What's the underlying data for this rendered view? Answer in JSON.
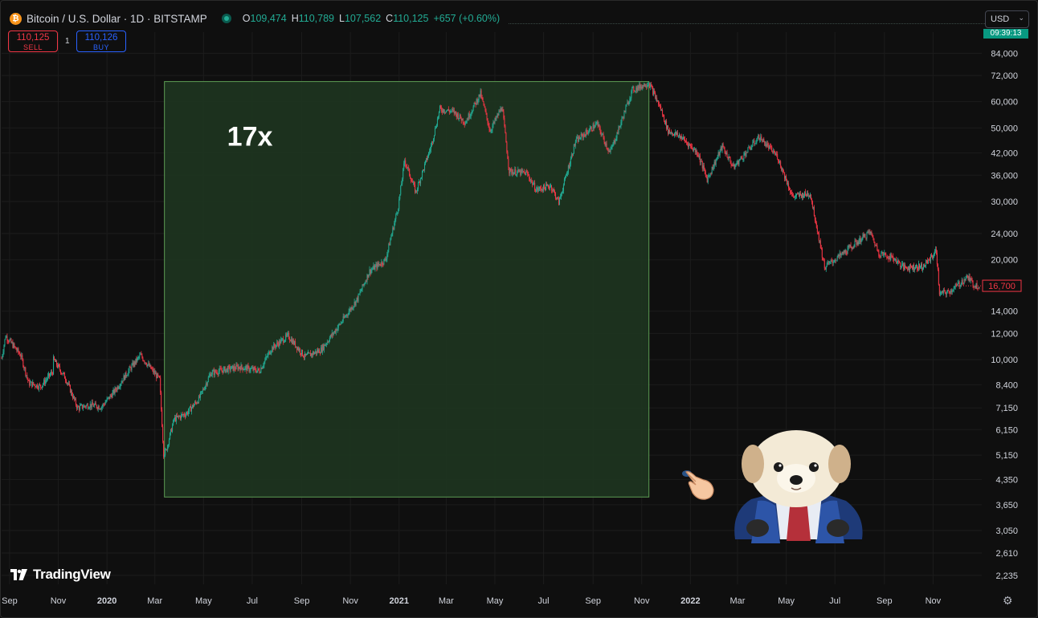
{
  "header": {
    "symbol": "Bitcoin / U.S. Dollar · 1D · BITSTAMP",
    "coin_glyph": "₿",
    "ohlc": [
      {
        "k": "O",
        "v": "109,474"
      },
      {
        "k": "H",
        "v": "110,789"
      },
      {
        "k": "L",
        "v": "107,562"
      },
      {
        "k": "C",
        "v": "110,125"
      },
      {
        "k": "",
        "v": "+657 (+0.60%)"
      }
    ]
  },
  "trade": {
    "sell_price": "110,125",
    "sell_label": "SELL",
    "spread": "1",
    "buy_price": "110,126",
    "buy_label": "BUY"
  },
  "currency": "USD",
  "timer": "09:39:13",
  "brand": "TradingView",
  "annotation_label": "17x",
  "current_price_label": "16,700",
  "colors": {
    "up": "#22ab94",
    "down": "#f23645",
    "bg": "#0f0f0f",
    "box": "#1e3420",
    "box_border": "#5d9c54"
  },
  "icons": [
    "coin-icon",
    "status-icon",
    "chevron-down-icon",
    "tradingview-logo-icon",
    "gear-icon",
    "pointing-hand-icon",
    "puppy-mascot-icon"
  ],
  "chart_data": {
    "type": "line",
    "title": "",
    "scale": "log",
    "grid": true,
    "y_ticks": [
      "84,000",
      "72,000",
      "60,000",
      "50,000",
      "42,000",
      "36,000",
      "30,000",
      "24,000",
      "20,000",
      "16,700",
      "14,000",
      "12,000",
      "10,000",
      "8,400",
      "7,150",
      "6,150",
      "5,150",
      "4,350",
      "3,650",
      "3,050",
      "2,610",
      "2,235"
    ],
    "x_ticks": [
      "Sep",
      "Nov",
      "2020",
      "Mar",
      "May",
      "Jul",
      "Sep",
      "Nov",
      "2021",
      "Mar",
      "May",
      "Jul",
      "Sep",
      "Nov",
      "2022",
      "Mar",
      "May",
      "Jul",
      "Sep",
      "Nov"
    ],
    "series": [
      {
        "values": [
          {
            "x": "2019-08-22",
            "y": 10100
          },
          {
            "x": "2019-08-27",
            "y": 11800
          },
          {
            "x": "2019-09-15",
            "y": 10300
          },
          {
            "x": "2019-09-25",
            "y": 8500
          },
          {
            "x": "2019-10-10",
            "y": 8300
          },
          {
            "x": "2019-10-25",
            "y": 9200
          },
          {
            "x": "2019-10-26",
            "y": 10000
          },
          {
            "x": "2019-11-10",
            "y": 8800
          },
          {
            "x": "2019-11-25",
            "y": 7150
          },
          {
            "x": "2019-12-10",
            "y": 7300
          },
          {
            "x": "2019-12-25",
            "y": 7200
          },
          {
            "x": "2020-01-10",
            "y": 8000
          },
          {
            "x": "2020-01-30",
            "y": 9400
          },
          {
            "x": "2020-02-12",
            "y": 10300
          },
          {
            "x": "2020-03-07",
            "y": 8700
          },
          {
            "x": "2020-03-12",
            "y": 5200
          },
          {
            "x": "2020-03-15",
            "y": 5300
          },
          {
            "x": "2020-03-25",
            "y": 6600
          },
          {
            "x": "2020-04-10",
            "y": 6900
          },
          {
            "x": "2020-04-25",
            "y": 7600
          },
          {
            "x": "2020-05-10",
            "y": 9100
          },
          {
            "x": "2020-05-25",
            "y": 9300
          },
          {
            "x": "2020-06-15",
            "y": 9500
          },
          {
            "x": "2020-07-10",
            "y": 9250
          },
          {
            "x": "2020-07-25",
            "y": 10800
          },
          {
            "x": "2020-08-15",
            "y": 11800
          },
          {
            "x": "2020-09-05",
            "y": 10200
          },
          {
            "x": "2020-09-25",
            "y": 10700
          },
          {
            "x": "2020-10-20",
            "y": 12900
          },
          {
            "x": "2020-11-10",
            "y": 15300
          },
          {
            "x": "2020-11-25",
            "y": 18500
          },
          {
            "x": "2020-12-15",
            "y": 20000
          },
          {
            "x": "2020-12-31",
            "y": 29000
          },
          {
            "x": "2021-01-08",
            "y": 40000
          },
          {
            "x": "2021-01-22",
            "y": 32000
          },
          {
            "x": "2021-02-10",
            "y": 44000
          },
          {
            "x": "2021-02-21",
            "y": 57000
          },
          {
            "x": "2021-03-10",
            "y": 56000
          },
          {
            "x": "2021-03-25",
            "y": 52000
          },
          {
            "x": "2021-04-13",
            "y": 63500
          },
          {
            "x": "2021-04-25",
            "y": 49000
          },
          {
            "x": "2021-05-10",
            "y": 58000
          },
          {
            "x": "2021-05-19",
            "y": 37000
          },
          {
            "x": "2021-06-10",
            "y": 36500
          },
          {
            "x": "2021-06-22",
            "y": 32500
          },
          {
            "x": "2021-07-10",
            "y": 33500
          },
          {
            "x": "2021-07-20",
            "y": 29800
          },
          {
            "x": "2021-08-10",
            "y": 45500
          },
          {
            "x": "2021-09-06",
            "y": 51500
          },
          {
            "x": "2021-09-22",
            "y": 42000
          },
          {
            "x": "2021-10-01",
            "y": 48000
          },
          {
            "x": "2021-10-20",
            "y": 65000
          },
          {
            "x": "2021-11-10",
            "y": 68500
          },
          {
            "x": "2021-11-25",
            "y": 57000
          },
          {
            "x": "2021-12-04",
            "y": 49000
          },
          {
            "x": "2021-12-20",
            "y": 47000
          },
          {
            "x": "2022-01-10",
            "y": 42000
          },
          {
            "x": "2022-01-22",
            "y": 35000
          },
          {
            "x": "2022-02-10",
            "y": 44000
          },
          {
            "x": "2022-02-24",
            "y": 38000
          },
          {
            "x": "2022-03-28",
            "y": 47000
          },
          {
            "x": "2022-04-20",
            "y": 41000
          },
          {
            "x": "2022-05-09",
            "y": 31000
          },
          {
            "x": "2022-05-31",
            "y": 31700
          },
          {
            "x": "2022-06-13",
            "y": 22000
          },
          {
            "x": "2022-06-18",
            "y": 19000
          },
          {
            "x": "2022-07-10",
            "y": 20800
          },
          {
            "x": "2022-08-14",
            "y": 24300
          },
          {
            "x": "2022-08-25",
            "y": 21000
          },
          {
            "x": "2022-09-13",
            "y": 20200
          },
          {
            "x": "2022-09-25",
            "y": 19000
          },
          {
            "x": "2022-10-20",
            "y": 19100
          },
          {
            "x": "2022-11-05",
            "y": 21300
          },
          {
            "x": "2022-11-09",
            "y": 15800
          },
          {
            "x": "2022-11-21",
            "y": 16000
          },
          {
            "x": "2022-12-05",
            "y": 17000
          },
          {
            "x": "2022-12-14",
            "y": 17800
          },
          {
            "x": "2022-12-22",
            "y": 16800
          },
          {
            "x": "2022-12-30",
            "y": 16700
          }
        ]
      }
    ],
    "x_range": [
      "2019-08-20",
      "2023-01-01"
    ],
    "y_range": [
      2100,
      92000
    ],
    "annotations": [
      {
        "type": "box",
        "label": "17x",
        "x0": "2020-03-13",
        "x1": "2021-11-10",
        "y0": 3850,
        "y1": 69000
      }
    ]
  }
}
